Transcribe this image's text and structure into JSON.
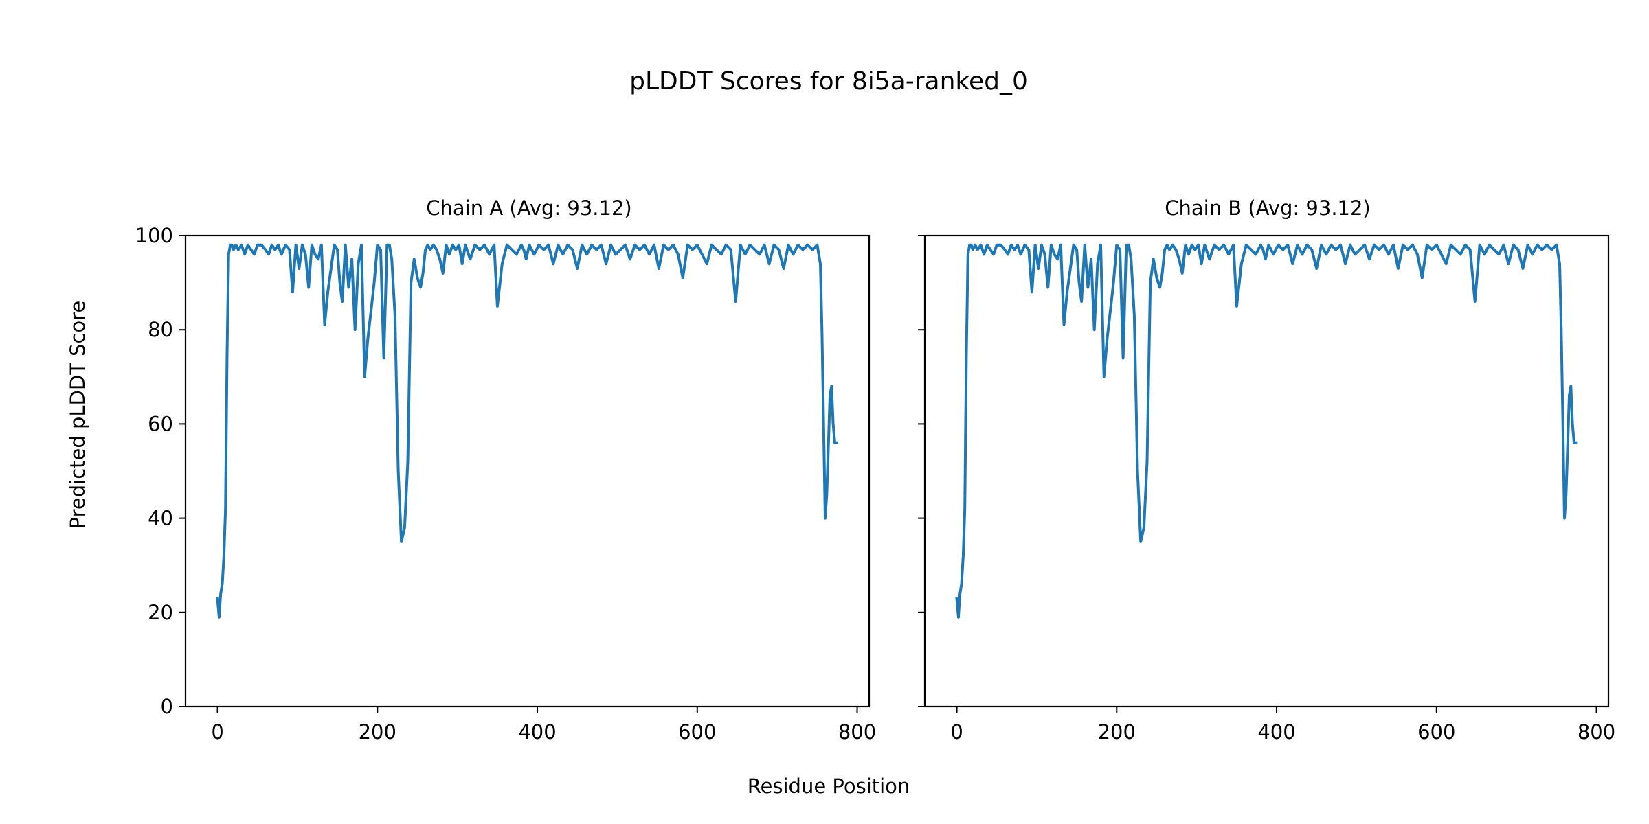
{
  "figure": {
    "title": "pLDDT Scores for 8i5a-ranked_0",
    "xlabel": "Residue Position",
    "ylabel": "Predicted pLDDT Score"
  },
  "colors": {
    "series": "#1f77b4",
    "axes": "#000000",
    "background": "#ffffff"
  },
  "chart_data": [
    {
      "type": "line",
      "title": "Chain A (Avg: 93.12)",
      "xlabel": "Residue Position",
      "ylabel": "Predicted pLDDT Score",
      "xlim": [
        -40,
        815
      ],
      "ylim": [
        0,
        100
      ],
      "xticks": [
        0,
        200,
        400,
        600,
        800
      ],
      "yticks": [
        0,
        20,
        40,
        60,
        80,
        100
      ],
      "grid": false,
      "series": [
        {
          "x": [
            0,
            2,
            4,
            6,
            8,
            10,
            12,
            14,
            16,
            18,
            20,
            23,
            26,
            30,
            34,
            38,
            42,
            46,
            50,
            55,
            60,
            64,
            68,
            72,
            76,
            80,
            85,
            90,
            94,
            98,
            102,
            106,
            110,
            114,
            118,
            122,
            126,
            130,
            134,
            138,
            142,
            146,
            150,
            153,
            156,
            160,
            164,
            168,
            172,
            176,
            180,
            184,
            188,
            192,
            196,
            200,
            204,
            208,
            212,
            215,
            218,
            222,
            226,
            230,
            234,
            238,
            242,
            246,
            250,
            254,
            257,
            260,
            263,
            266,
            270,
            274,
            278,
            282,
            286,
            290,
            294,
            298,
            302,
            306,
            310,
            316,
            322,
            328,
            334,
            340,
            346,
            350,
            356,
            362,
            368,
            374,
            380,
            383,
            386,
            390,
            396,
            402,
            408,
            414,
            420,
            426,
            432,
            438,
            444,
            450,
            456,
            462,
            468,
            474,
            480,
            486,
            492,
            498,
            504,
            510,
            516,
            522,
            528,
            534,
            540,
            546,
            552,
            558,
            564,
            570,
            576,
            582,
            588,
            594,
            600,
            606,
            612,
            618,
            624,
            630,
            636,
            642,
            648,
            654,
            660,
            666,
            672,
            678,
            684,
            690,
            696,
            702,
            708,
            714,
            720,
            726,
            732,
            738,
            744,
            750,
            754,
            756,
            758,
            760,
            762,
            764,
            766,
            768,
            770,
            772,
            774
          ],
          "y": [
            23,
            19,
            24,
            26,
            32,
            42,
            75,
            96,
            98,
            98,
            97,
            98,
            97,
            98,
            96,
            98,
            97,
            96,
            98,
            98,
            97,
            96,
            98,
            97,
            98,
            96,
            98,
            97,
            88,
            98,
            93,
            98,
            96,
            89,
            98,
            96,
            95,
            98,
            81,
            88,
            93,
            98,
            97,
            90,
            86,
            98,
            89,
            95,
            80,
            94,
            98,
            70,
            78,
            84,
            90,
            98,
            97,
            74,
            98,
            98,
            95,
            83,
            50,
            35,
            38,
            52,
            90,
            95,
            91,
            89,
            92,
            97,
            98,
            97,
            98,
            97,
            95,
            92,
            98,
            96,
            98,
            97,
            98,
            94,
            98,
            95,
            98,
            97,
            98,
            96,
            98,
            85,
            94,
            98,
            97,
            96,
            98,
            97,
            95,
            98,
            96,
            98,
            97,
            98,
            94,
            98,
            96,
            98,
            97,
            93,
            98,
            96,
            98,
            97,
            98,
            94,
            98,
            96,
            97,
            98,
            95,
            98,
            97,
            98,
            96,
            98,
            93,
            98,
            97,
            98,
            96,
            91,
            98,
            97,
            98,
            96,
            94,
            98,
            97,
            96,
            98,
            97,
            86,
            98,
            96,
            98,
            97,
            96,
            98,
            94,
            98,
            97,
            93,
            98,
            96,
            98,
            97,
            98,
            97,
            98,
            94,
            80,
            60,
            40,
            45,
            55,
            66,
            68,
            60,
            56,
            56
          ]
        }
      ]
    },
    {
      "type": "line",
      "title": "Chain B (Avg: 93.12)",
      "xlabel": "Residue Position",
      "ylabel": "",
      "xlim": [
        -40,
        815
      ],
      "ylim": [
        0,
        100
      ],
      "xticks": [
        0,
        200,
        400,
        600,
        800
      ],
      "yticks": [
        0,
        20,
        40,
        60,
        80,
        100
      ],
      "grid": false,
      "series": [
        {
          "x": [
            0,
            2,
            4,
            6,
            8,
            10,
            12,
            14,
            16,
            18,
            20,
            23,
            26,
            30,
            34,
            38,
            42,
            46,
            50,
            55,
            60,
            64,
            68,
            72,
            76,
            80,
            85,
            90,
            94,
            98,
            102,
            106,
            110,
            114,
            118,
            122,
            126,
            130,
            134,
            138,
            142,
            146,
            150,
            153,
            156,
            160,
            164,
            168,
            172,
            176,
            180,
            184,
            188,
            192,
            196,
            200,
            204,
            208,
            212,
            215,
            218,
            222,
            226,
            230,
            234,
            238,
            242,
            246,
            250,
            254,
            257,
            260,
            263,
            266,
            270,
            274,
            278,
            282,
            286,
            290,
            294,
            298,
            302,
            306,
            310,
            316,
            322,
            328,
            334,
            340,
            346,
            350,
            356,
            362,
            368,
            374,
            380,
            383,
            386,
            390,
            396,
            402,
            408,
            414,
            420,
            426,
            432,
            438,
            444,
            450,
            456,
            462,
            468,
            474,
            480,
            486,
            492,
            498,
            504,
            510,
            516,
            522,
            528,
            534,
            540,
            546,
            552,
            558,
            564,
            570,
            576,
            582,
            588,
            594,
            600,
            606,
            612,
            618,
            624,
            630,
            636,
            642,
            648,
            654,
            660,
            666,
            672,
            678,
            684,
            690,
            696,
            702,
            708,
            714,
            720,
            726,
            732,
            738,
            744,
            750,
            754,
            756,
            758,
            760,
            762,
            764,
            766,
            768,
            770,
            772,
            774
          ],
          "y": [
            23,
            19,
            24,
            26,
            32,
            42,
            75,
            96,
            98,
            98,
            97,
            98,
            97,
            98,
            96,
            98,
            97,
            96,
            98,
            98,
            97,
            96,
            98,
            97,
            98,
            96,
            98,
            97,
            88,
            98,
            93,
            98,
            96,
            89,
            98,
            96,
            95,
            98,
            81,
            88,
            93,
            98,
            97,
            90,
            86,
            98,
            89,
            95,
            80,
            94,
            98,
            70,
            78,
            84,
            90,
            98,
            97,
            74,
            98,
            98,
            95,
            83,
            50,
            35,
            38,
            52,
            90,
            95,
            91,
            89,
            92,
            97,
            98,
            97,
            98,
            97,
            95,
            92,
            98,
            96,
            98,
            97,
            98,
            94,
            98,
            95,
            98,
            97,
            98,
            96,
            98,
            85,
            94,
            98,
            97,
            96,
            98,
            97,
            95,
            98,
            96,
            98,
            97,
            98,
            94,
            98,
            96,
            98,
            97,
            93,
            98,
            96,
            98,
            97,
            98,
            94,
            98,
            96,
            97,
            98,
            95,
            98,
            97,
            98,
            96,
            98,
            93,
            98,
            97,
            98,
            96,
            91,
            98,
            97,
            98,
            96,
            94,
            98,
            97,
            96,
            98,
            97,
            86,
            98,
            96,
            98,
            97,
            96,
            98,
            94,
            98,
            97,
            93,
            98,
            96,
            98,
            97,
            98,
            97,
            98,
            94,
            80,
            60,
            40,
            45,
            55,
            66,
            68,
            60,
            56,
            56
          ]
        }
      ]
    }
  ]
}
